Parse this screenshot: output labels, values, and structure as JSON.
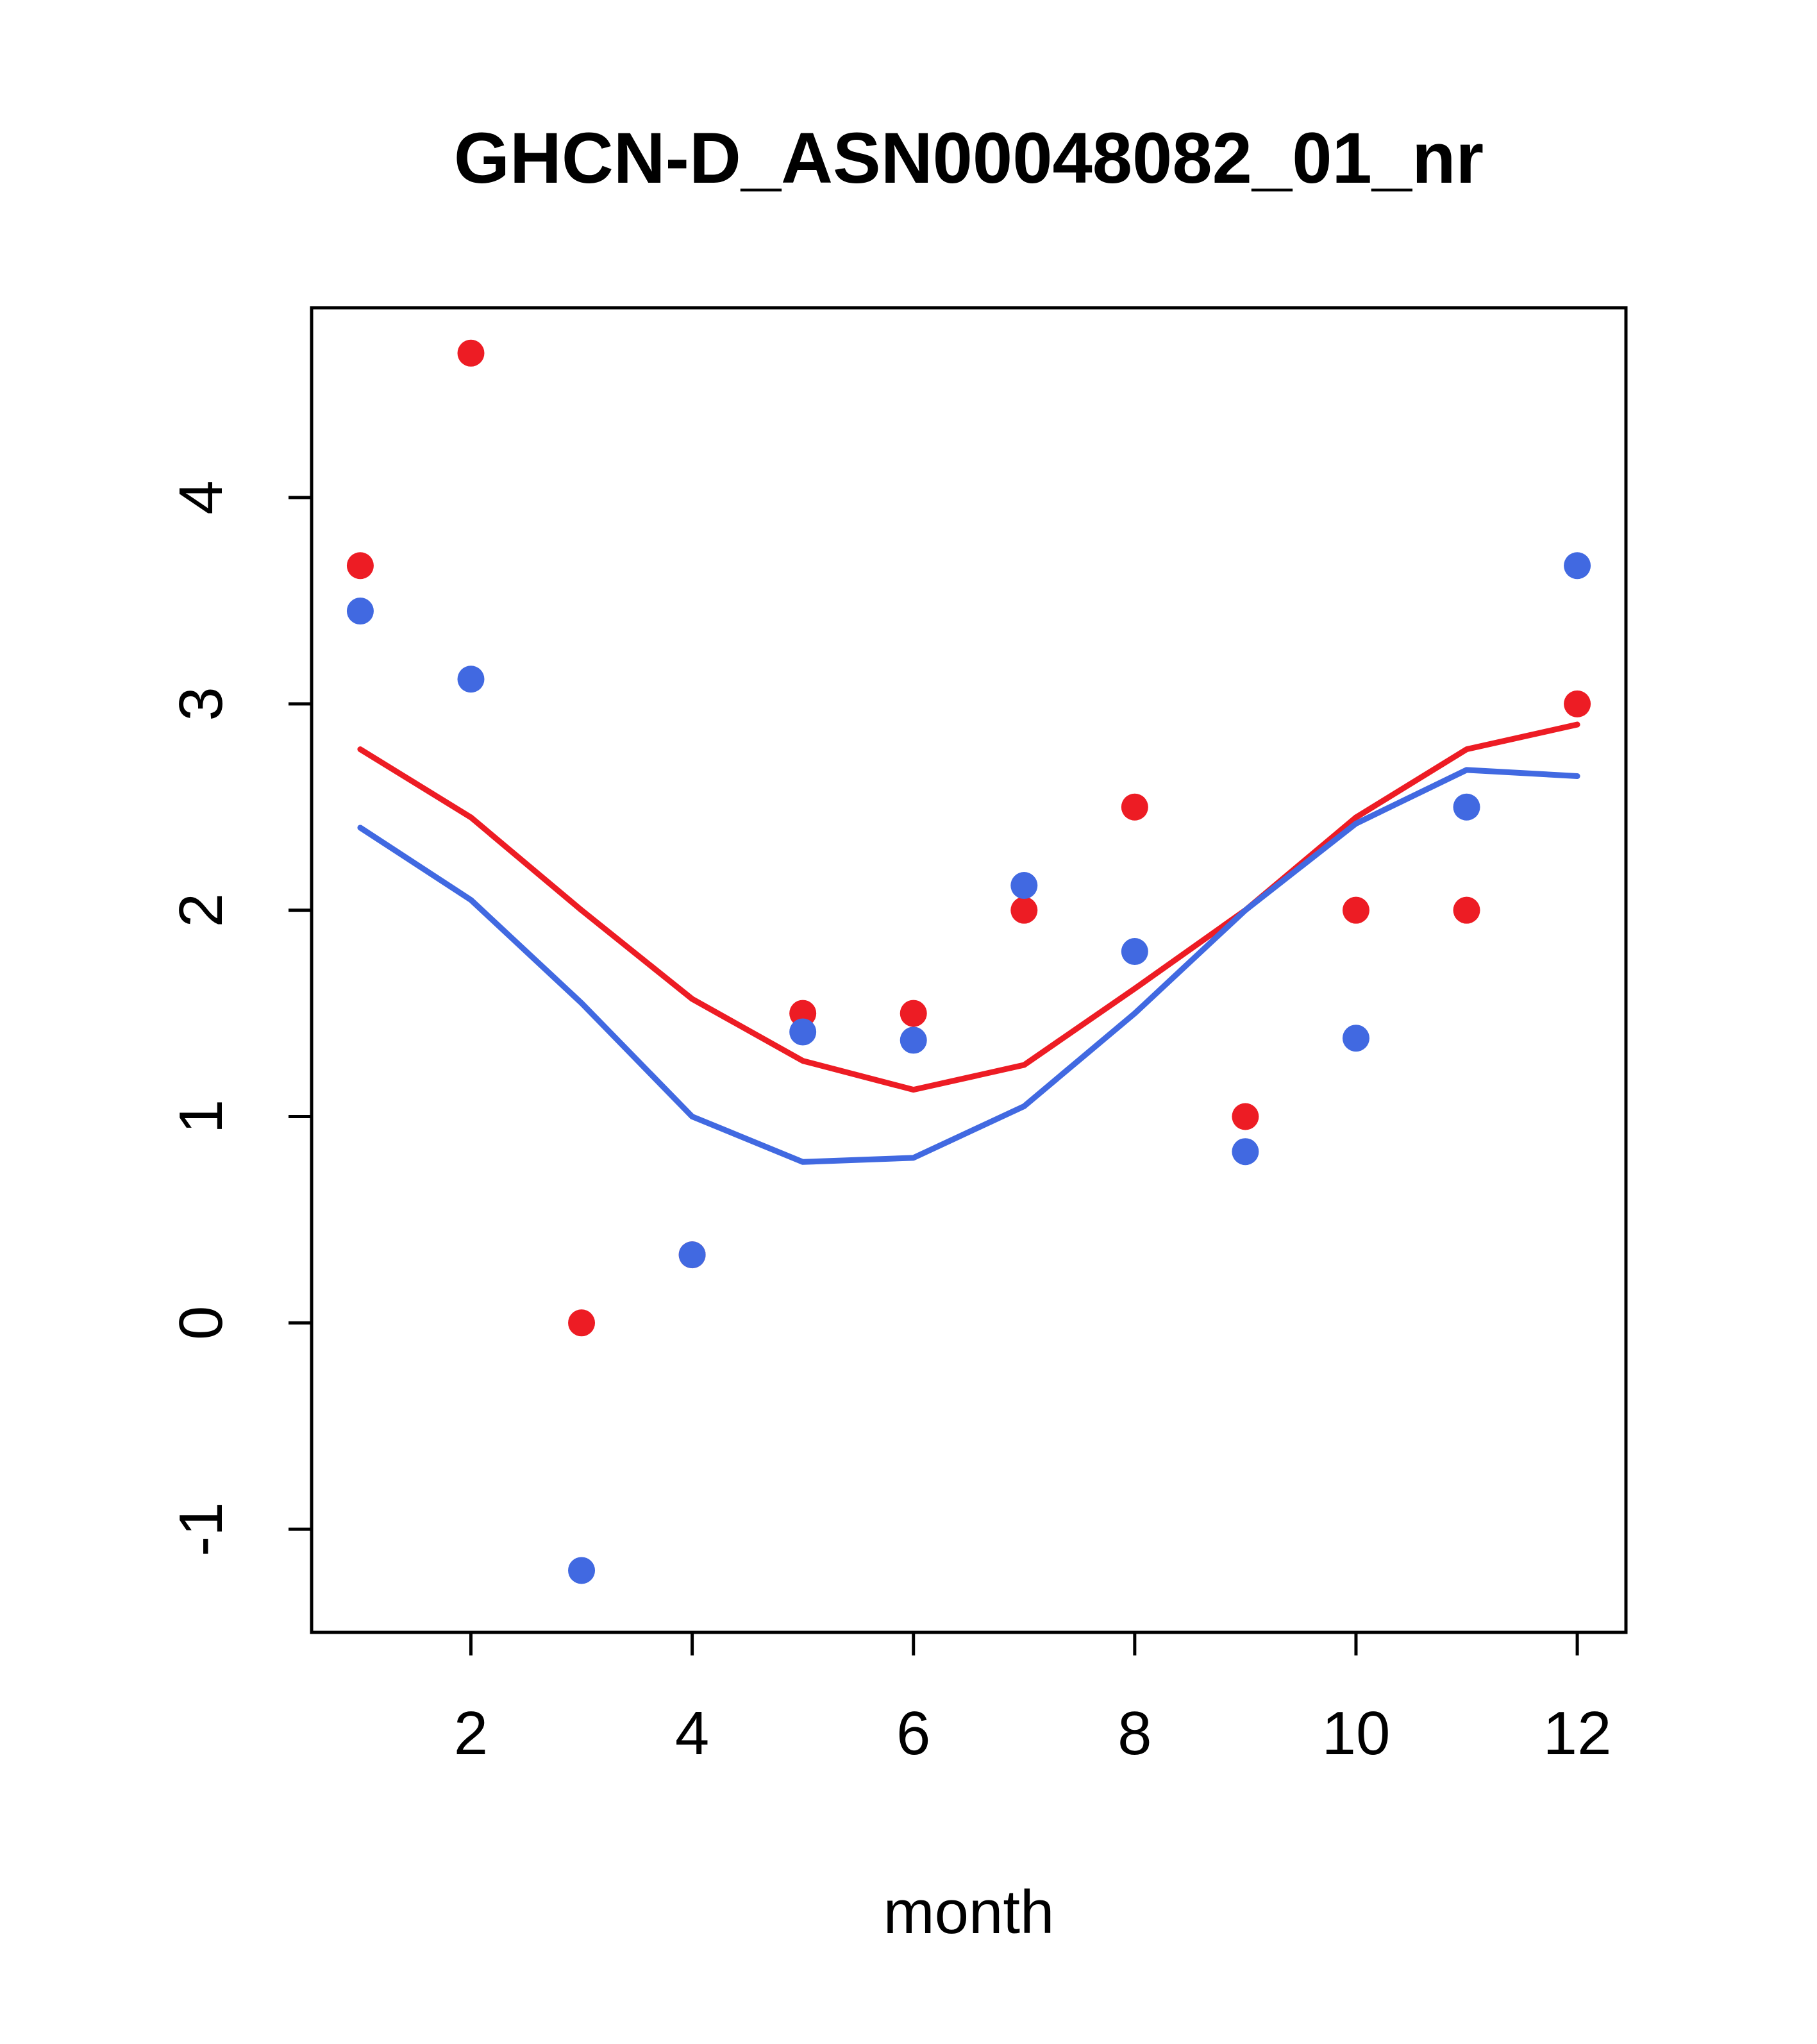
{
  "chart_data": {
    "type": "scatter",
    "title": "GHCN-D_ASN00048082_01_nr",
    "xlabel": "month",
    "ylabel": "",
    "x": [
      1,
      2,
      3,
      4,
      5,
      6,
      7,
      8,
      9,
      10,
      11,
      12
    ],
    "xlim": [
      0.56,
      12.44
    ],
    "ylim": [
      -1.5,
      4.92
    ],
    "x_ticks": [
      2,
      4,
      6,
      8,
      10,
      12
    ],
    "y_ticks": [
      -1,
      0,
      1,
      2,
      3,
      4
    ],
    "grid": false,
    "legend": "none",
    "series": [
      {
        "name": "red-points",
        "style": "points",
        "color": "#ed1c24",
        "values": [
          3.67,
          4.7,
          0.0,
          0.33,
          1.5,
          1.5,
          2.0,
          2.5,
          1.0,
          2.0,
          2.0,
          3.0
        ]
      },
      {
        "name": "blue-points",
        "style": "points",
        "color": "#4169e1",
        "values": [
          3.45,
          3.12,
          -1.2,
          0.33,
          1.41,
          1.37,
          2.12,
          1.8,
          0.83,
          1.38,
          2.5,
          3.67
        ]
      },
      {
        "name": "red-line",
        "style": "line",
        "color": "#ed1c24",
        "values": [
          2.78,
          2.45,
          2.0,
          1.57,
          1.27,
          1.13,
          1.25,
          1.62,
          2.0,
          2.45,
          2.78,
          2.9
        ]
      },
      {
        "name": "blue-line",
        "style": "line",
        "color": "#4169e1",
        "values": [
          2.4,
          2.05,
          1.55,
          1.0,
          0.78,
          0.8,
          1.05,
          1.5,
          2.0,
          2.42,
          2.68,
          2.65
        ]
      }
    ]
  },
  "colors": {
    "red": "#ed1c24",
    "blue": "#4169e1",
    "axis": "#000000",
    "background": "#ffffff"
  }
}
